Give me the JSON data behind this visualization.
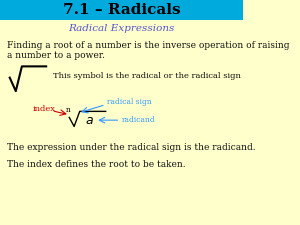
{
  "title": "7.1 – Radicals",
  "title_color": "#000000",
  "title_bg": "#00aadd",
  "subtitle": "Radical Expressions",
  "subtitle_color": "#5555cc",
  "body_color": "#111111",
  "bg_color": "#ffffcc",
  "line1": "Finding a root of a number is the inverse operation of raising",
  "line2": "a number to a power.",
  "symbol_text": "This symbol is the radical or the radical sign",
  "label_index": "index",
  "label_index_color": "#cc0000",
  "label_radical_sign": "radical sign",
  "label_radical_sign_color": "#3399ff",
  "label_radicand": "radicand",
  "label_radicand_color": "#3399ff",
  "footer1": "The expression under the radical sign is the radicand.",
  "footer2": "The index defines the root to be taken."
}
